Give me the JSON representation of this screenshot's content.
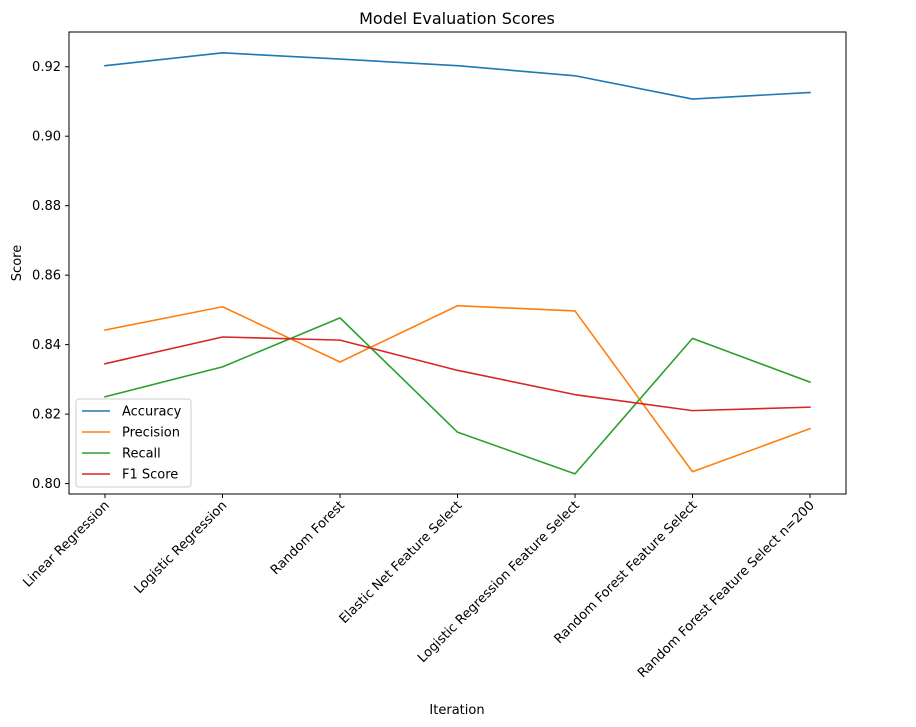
{
  "chart_data": {
    "type": "line",
    "title": "Model Evaluation Scores",
    "xlabel": "Iteration",
    "ylabel": "Score",
    "categories": [
      "Linear Regression",
      "Logistic Regression",
      "Random Forest",
      "Elastic Net Feature Select",
      "Logistic Regression Feature Select",
      "Random Forest Feature Select",
      "Random Forest Feature Select n=200"
    ],
    "ylim": [
      0.797,
      0.93
    ],
    "yticks": [
      0.8,
      0.82,
      0.84,
      0.86,
      0.88,
      0.9,
      0.92
    ],
    "ytick_labels": [
      "0.80",
      "0.82",
      "0.84",
      "0.86",
      "0.88",
      "0.90",
      "0.92"
    ],
    "grid": false,
    "legend": "lower-left",
    "series": [
      {
        "name": "Accuracy",
        "color": "#1f77b4",
        "values": [
          0.9203,
          0.924,
          0.9222,
          0.9203,
          0.9174,
          0.9107,
          0.9126
        ]
      },
      {
        "name": "Precision",
        "color": "#ff7f0e",
        "values": [
          0.8442,
          0.8509,
          0.835,
          0.8512,
          0.8497,
          0.8034,
          0.8158
        ]
      },
      {
        "name": "Recall",
        "color": "#2ca02c",
        "values": [
          0.825,
          0.8336,
          0.8477,
          0.8148,
          0.8028,
          0.8418,
          0.8292
        ]
      },
      {
        "name": "F1 Score",
        "color": "#d62728",
        "values": [
          0.8345,
          0.8422,
          0.8413,
          0.8326,
          0.8256,
          0.821,
          0.822
        ]
      }
    ]
  }
}
